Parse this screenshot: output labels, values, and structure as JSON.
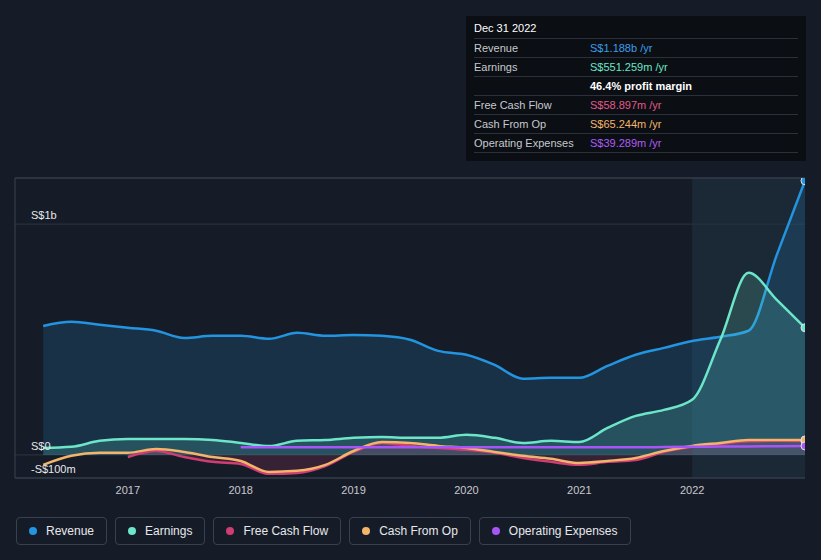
{
  "chart_data": {
    "type": "line",
    "x": [
      2016.25,
      2016.5,
      2016.75,
      2017.0,
      2017.25,
      2017.5,
      2017.75,
      2018.0,
      2018.25,
      2018.5,
      2018.75,
      2019.0,
      2019.25,
      2019.5,
      2019.75,
      2020.0,
      2020.25,
      2020.5,
      2020.75,
      2021.0,
      2021.25,
      2021.5,
      2021.75,
      2022.0,
      2022.25,
      2022.5,
      2022.75,
      2023.0
    ],
    "xlim": [
      2016,
      2023
    ],
    "xticks": [
      2017,
      2018,
      2019,
      2020,
      2021,
      2022
    ],
    "ylim": [
      -100,
      1200
    ],
    "yticks": [
      {
        "value": -100,
        "label": "-S$100m"
      },
      {
        "value": 0,
        "label": "S$0"
      },
      {
        "value": 1000,
        "label": "S$1b"
      }
    ],
    "grid": true,
    "legend": "bottom",
    "highlight": [
      2022,
      2023
    ],
    "series": [
      {
        "name": "Revenue",
        "type": "area",
        "color": "#2394df",
        "values": [
          559,
          577,
          564,
          551,
          538,
          507,
          516,
          516,
          503,
          529,
          516,
          520,
          516,
          499,
          451,
          434,
          390,
          330,
          334,
          334,
          386,
          434,
          464,
          494,
          512,
          538,
          867,
          1188
        ]
      },
      {
        "name": "Earnings",
        "type": "area",
        "color": "#6ce5c8",
        "values": [
          30,
          35,
          61,
          69,
          69,
          69,
          65,
          52,
          39,
          61,
          65,
          74,
          78,
          74,
          74,
          87,
          74,
          52,
          61,
          56,
          117,
          169,
          195,
          239,
          499,
          789,
          672,
          551
        ]
      },
      {
        "name": "Free Cash Flow",
        "type": "area",
        "color": "#cf3d74",
        "values": [
          null,
          null,
          null,
          -9,
          17,
          -9,
          -30,
          -39,
          -82,
          -78,
          -48,
          13,
          52,
          39,
          30,
          22,
          9,
          -13,
          -30,
          -43,
          -30,
          -22,
          13,
          35,
          48,
          59,
          61,
          59
        ]
      },
      {
        "name": "Cash From Op",
        "type": "line",
        "color": "#f2b56b",
        "values": [
          -43,
          -4,
          9,
          9,
          26,
          13,
          -9,
          -26,
          -74,
          -69,
          -43,
          17,
          56,
          52,
          39,
          30,
          13,
          -4,
          -17,
          -35,
          -26,
          -13,
          17,
          39,
          52,
          65,
          65,
          65
        ]
      },
      {
        "name": "Operating Expenses",
        "type": "line",
        "color": "#a855f7",
        "values": [
          null,
          null,
          null,
          null,
          null,
          null,
          null,
          33,
          33,
          33,
          33,
          33,
          33,
          33,
          33,
          33,
          33,
          33,
          33,
          33,
          33,
          33,
          34,
          35,
          36,
          37,
          38,
          39
        ]
      }
    ],
    "tooltip": {
      "title": "Dec 31 2022",
      "rows": [
        {
          "label": "Revenue",
          "value": "S$1.188b /yr",
          "color": "#3b9eea"
        },
        {
          "label": "Earnings",
          "value": "S$551.259m /yr",
          "color": "#6ce5c8"
        },
        {
          "label": "",
          "value": "46.4% profit margin",
          "color": "#ffffff"
        },
        {
          "label": "Free Cash Flow",
          "value": "S$58.897m /yr",
          "color": "#e05a8a"
        },
        {
          "label": "Cash From Op",
          "value": "S$65.244m /yr",
          "color": "#f2b56b"
        },
        {
          "label": "Operating Expenses",
          "value": "S$39.289m /yr",
          "color": "#b05cf7"
        }
      ]
    }
  }
}
